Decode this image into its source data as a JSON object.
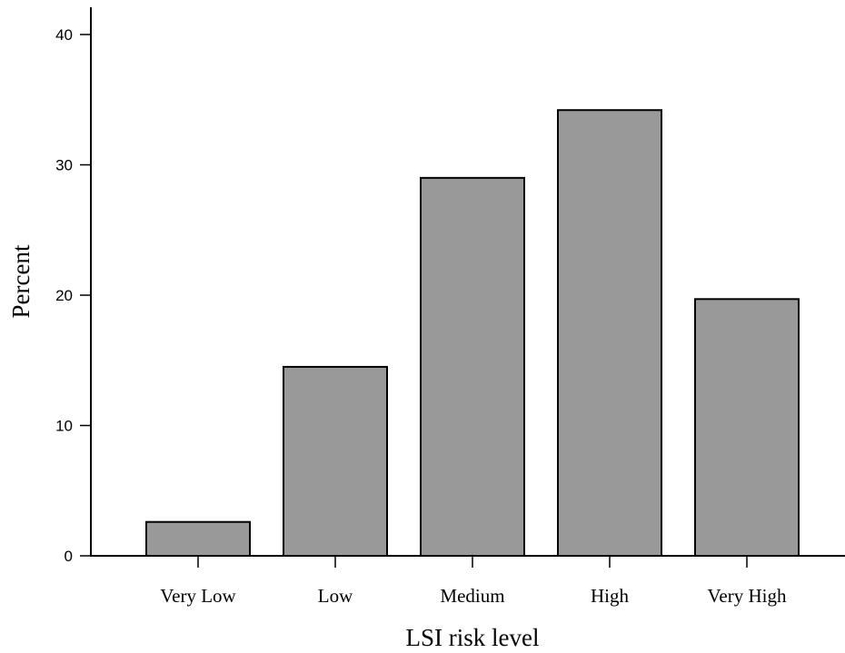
{
  "chart_data": {
    "type": "bar",
    "categories": [
      "Very Low",
      "Low",
      "Medium",
      "High",
      "Very High"
    ],
    "values": [
      2.6,
      14.5,
      29.0,
      34.2,
      19.7
    ],
    "xlabel": "LSI risk level",
    "ylabel": "Percent",
    "ylim": [
      0,
      42
    ],
    "yticks": [
      0,
      10,
      20,
      30,
      40
    ],
    "grid": false,
    "bar_color": "#999999"
  }
}
